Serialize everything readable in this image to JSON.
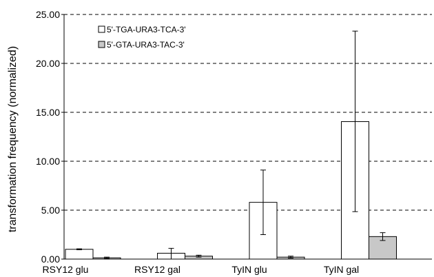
{
  "chart_data": {
    "type": "bar",
    "title": "",
    "xlabel": "",
    "ylabel": "transformation frequency (normalized)",
    "ylim": [
      0,
      25
    ],
    "yticks": [
      "0.00",
      "5.00",
      "10.00",
      "15.00",
      "20.00",
      "25.00"
    ],
    "ytick_values": [
      0,
      5,
      10,
      15,
      20,
      25
    ],
    "grid": "dashed horizontal",
    "legend_position": "top-left",
    "categories": [
      "RSY12 glu",
      "RSY12 gal",
      "TyIN glu",
      "TyIN gal"
    ],
    "series": [
      {
        "name": "5'-TGA-URA3-TCA-3'",
        "color": "#ffffff",
        "values": [
          1.0,
          0.6,
          5.8,
          14.05
        ],
        "err_low": [
          0.95,
          0.0,
          2.5,
          4.85
        ],
        "err_high": [
          1.05,
          1.1,
          9.1,
          23.3
        ]
      },
      {
        "name": "5'-GTA-URA3-TAC-3'",
        "color": "#c8c8c8",
        "values": [
          0.13,
          0.3,
          0.2,
          2.3
        ],
        "err_low": [
          0.05,
          0.2,
          0.1,
          1.9
        ],
        "err_high": [
          0.2,
          0.4,
          0.3,
          2.7
        ]
      }
    ]
  }
}
